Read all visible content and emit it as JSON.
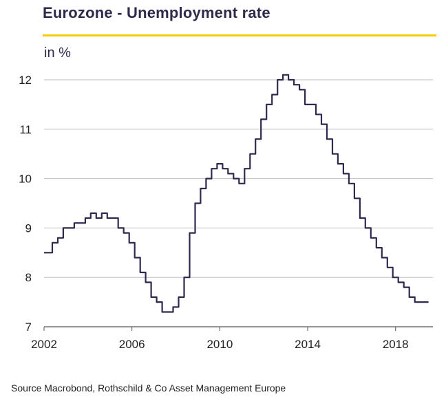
{
  "chart_data": {
    "type": "line",
    "title": "Eurozone - Unemployment rate",
    "ylabel": "in %",
    "xlabel": "",
    "xlim": [
      2002,
      2019.7
    ],
    "ylim": [
      7,
      12.6
    ],
    "yticks": [
      7,
      8,
      9,
      10,
      11,
      12
    ],
    "xticks": [
      2002,
      2006,
      2010,
      2014,
      2018
    ],
    "grid": "horizontal",
    "line_color": "#2e2a4e",
    "accent_color": "#f2cd00",
    "series": [
      {
        "x": [
          2002.0,
          2002.25,
          2002.5,
          2002.75,
          2003.0,
          2003.25,
          2003.5,
          2003.75,
          2004.0,
          2004.25,
          2004.5,
          2004.75,
          2005.0,
          2005.25,
          2005.5,
          2005.75,
          2006.0,
          2006.25,
          2006.5,
          2006.75,
          2007.0,
          2007.25,
          2007.5,
          2007.75,
          2008.0,
          2008.25,
          2008.5,
          2008.75,
          2009.0,
          2009.25,
          2009.5,
          2009.75,
          2010.0,
          2010.25,
          2010.5,
          2010.75,
          2011.0,
          2011.25,
          2011.5,
          2011.75,
          2012.0,
          2012.25,
          2012.5,
          2012.75,
          2013.0,
          2013.25,
          2013.5,
          2013.75,
          2014.0,
          2014.25,
          2014.5,
          2014.75,
          2015.0,
          2015.25,
          2015.5,
          2015.75,
          2016.0,
          2016.25,
          2016.5,
          2016.75,
          2017.0,
          2017.25,
          2017.5,
          2017.75,
          2018.0,
          2018.25,
          2018.5,
          2018.75,
          2019.0,
          2019.25,
          2019.5
        ],
        "y": [
          8.5,
          8.5,
          8.7,
          8.8,
          9.0,
          9.0,
          9.1,
          9.1,
          9.2,
          9.3,
          9.2,
          9.3,
          9.2,
          9.2,
          9.0,
          8.9,
          8.7,
          8.4,
          8.1,
          7.9,
          7.6,
          7.5,
          7.3,
          7.3,
          7.4,
          7.6,
          8.0,
          8.9,
          9.5,
          9.8,
          10.0,
          10.2,
          10.3,
          10.2,
          10.1,
          10.0,
          9.9,
          10.2,
          10.5,
          10.8,
          11.2,
          11.5,
          11.7,
          12.0,
          12.1,
          12.0,
          11.9,
          11.8,
          11.5,
          11.5,
          11.3,
          11.1,
          10.8,
          10.5,
          10.3,
          10.1,
          9.9,
          9.6,
          9.2,
          9.0,
          8.8,
          8.6,
          8.4,
          8.2,
          8.0,
          7.9,
          7.8,
          7.6,
          7.5,
          7.5,
          7.5
        ]
      }
    ]
  },
  "header": {
    "title": "Eurozone - Unemployment rate",
    "unit": "in %"
  },
  "footer": {
    "source": "Source Macrobond, Rothschild & Co Asset Management Europe"
  }
}
